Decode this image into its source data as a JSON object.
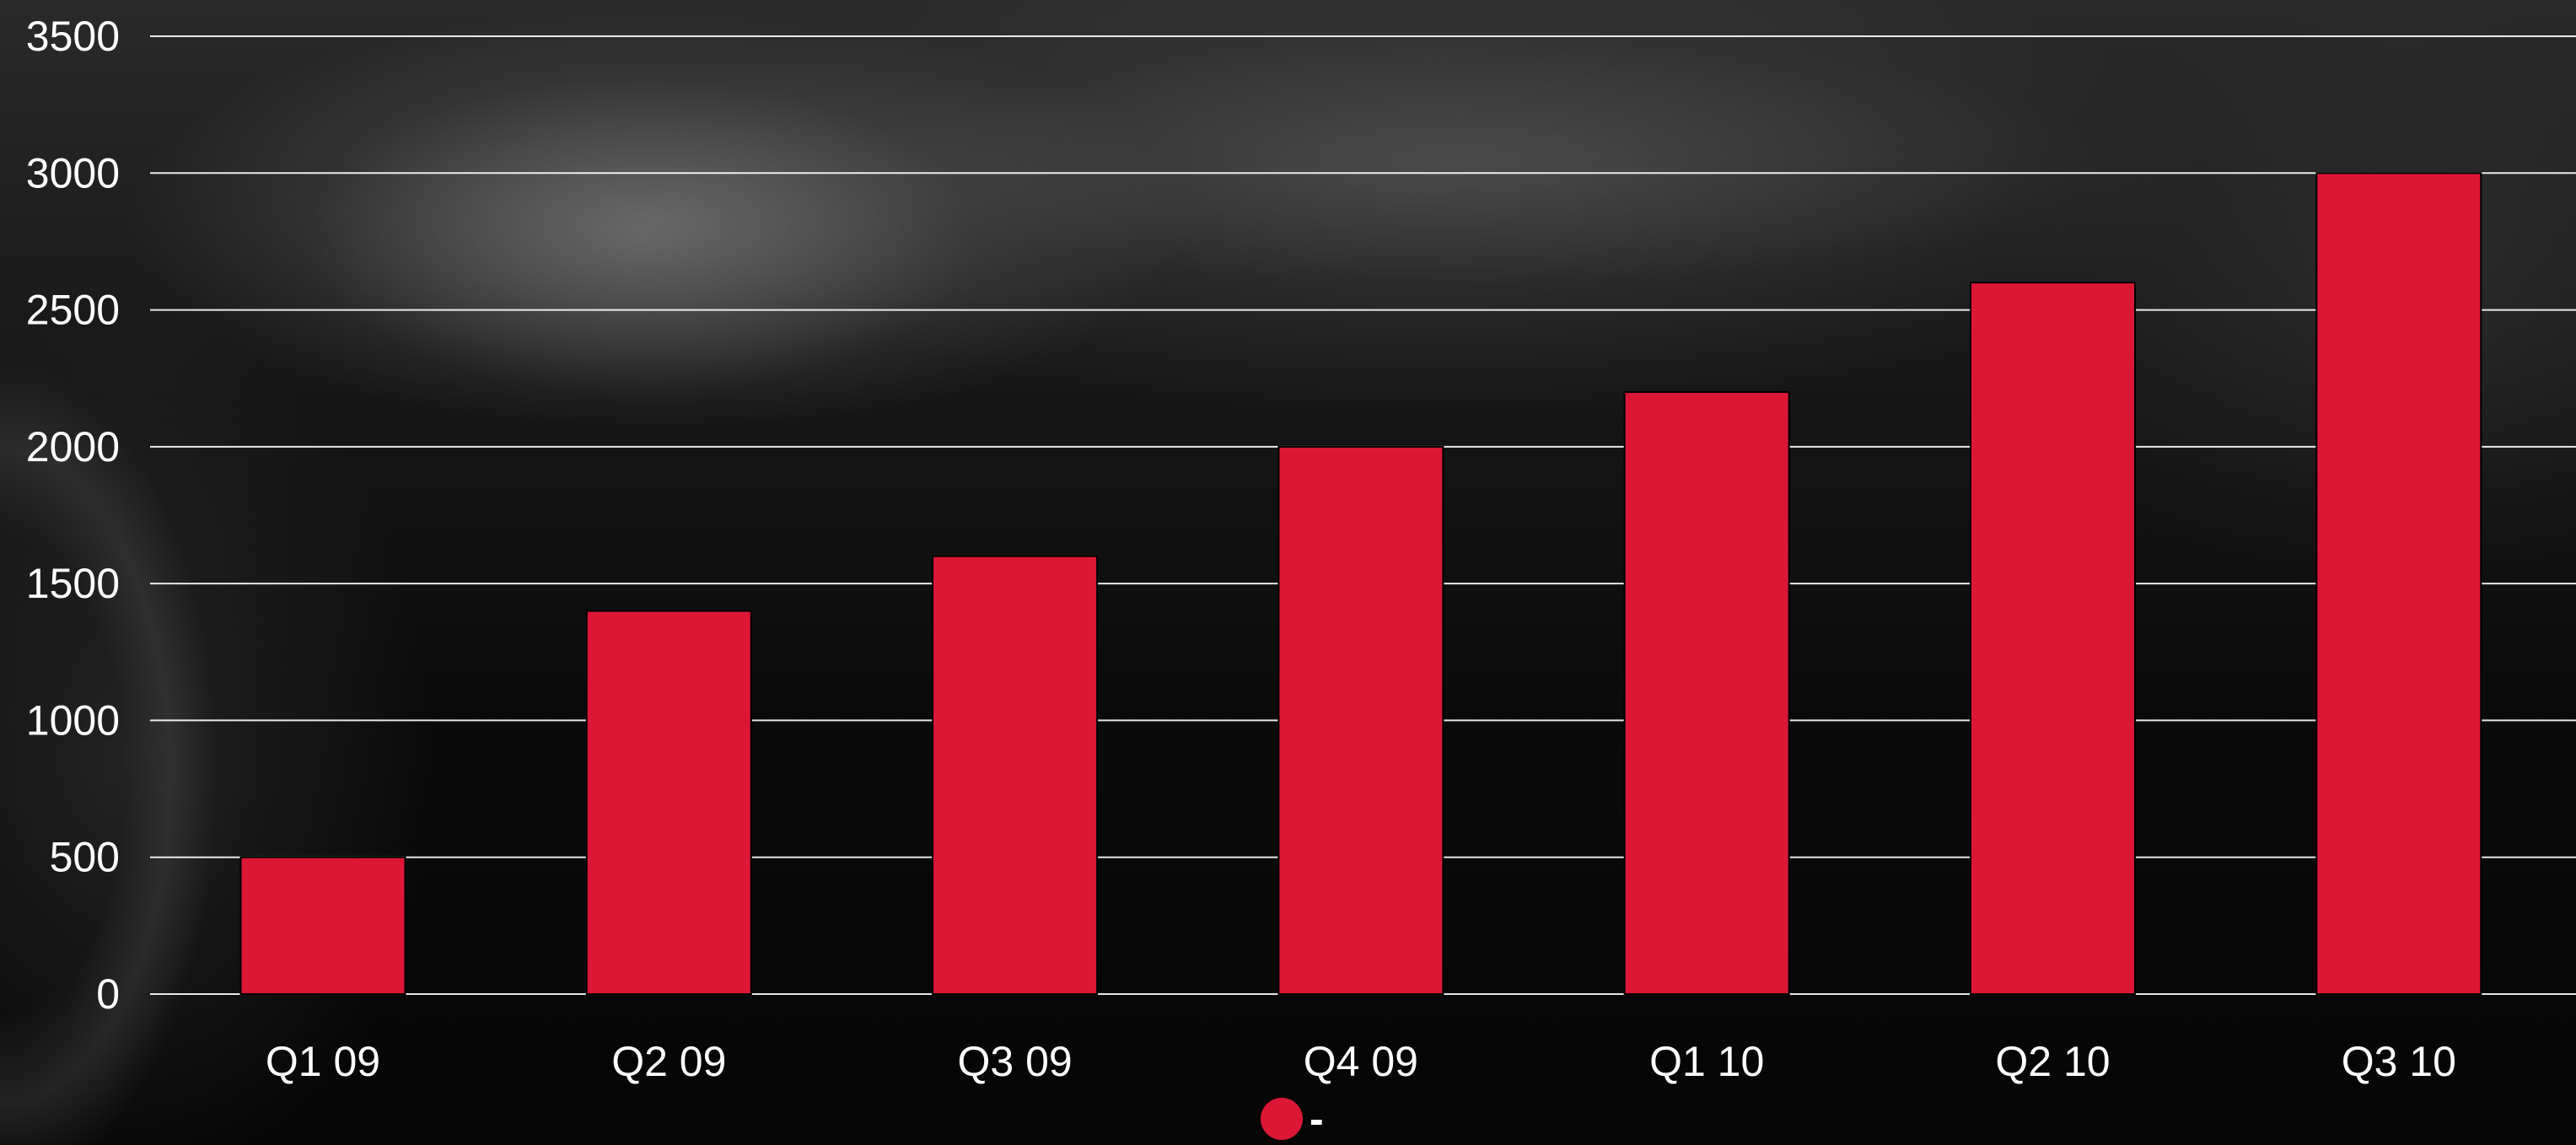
{
  "chart_data": {
    "type": "bar",
    "categories": [
      "Q1 09",
      "Q2 09",
      "Q3 09",
      "Q4 09",
      "Q1 10",
      "Q2 10",
      "Q3 10"
    ],
    "series": [
      {
        "values": [
          500,
          1400,
          1600,
          2000,
          2200,
          2600,
          3000
        ]
      }
    ],
    "y_ticks": [
      "0",
      "500",
      "1000",
      "1500",
      "2000",
      "2500",
      "3000",
      "3500"
    ],
    "ylim": [
      0,
      3500
    ],
    "grid": true,
    "legend_placement": "bottom",
    "legend": [
      {
        "label": "-"
      }
    ],
    "colors": {
      "bar": "#dc1735",
      "bar_stroke": "#000000",
      "grid": "#ffffff",
      "text": "#ffffff"
    }
  }
}
